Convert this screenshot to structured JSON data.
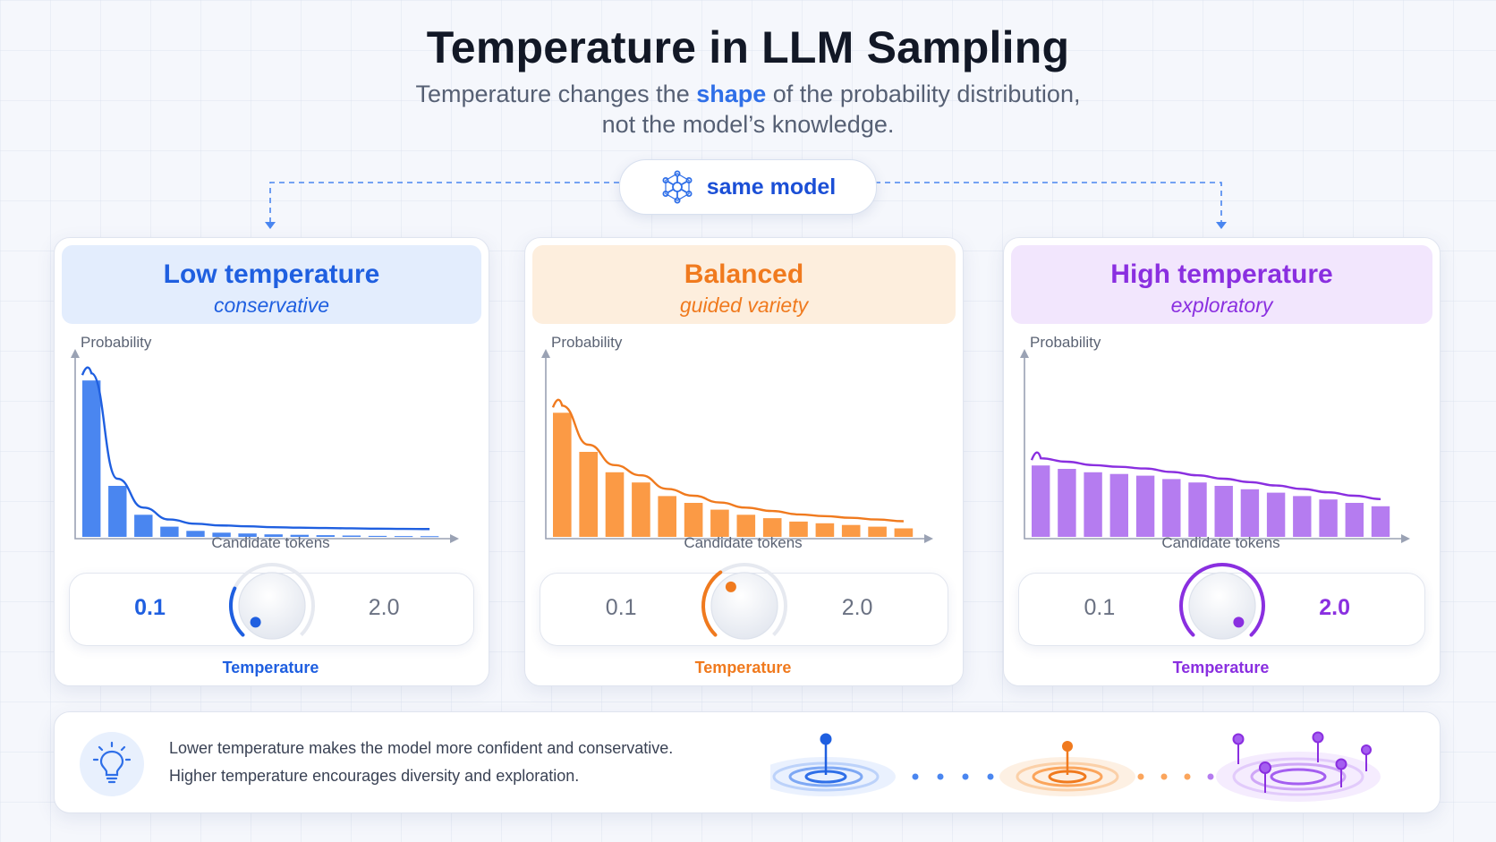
{
  "title": "Temperature in LLM Sampling",
  "subtitle": {
    "before": "Temperature changes the ",
    "highlight": "shape",
    "after": " of the probability distribution,",
    "line2": "not the model’s knowledge."
  },
  "center_pill": {
    "label": "same model",
    "icon": "neural-network-icon"
  },
  "panels": [
    {
      "title": "Low temperature",
      "subtitle": "conservative",
      "accent": "#1f5fe0",
      "bar_color": "#4a86f0",
      "header_bg": "#e3edfd",
      "ylabel": "Probability",
      "xlabel": "Candidate tokens",
      "bars": [
        0.92,
        0.3,
        0.13,
        0.06,
        0.035,
        0.025,
        0.02,
        0.015,
        0.012,
        0.01,
        0.008,
        0.006,
        0.005,
        0.004
      ],
      "dial_min": "0.1",
      "dial_max": "2.0",
      "temperature": 0.1,
      "dial_label": "Temperature"
    },
    {
      "title": "Balanced",
      "subtitle": "guided variety",
      "accent": "#f07a1e",
      "bar_color": "#fb9a45",
      "header_bg": "#fdeedd",
      "ylabel": "Probability",
      "xlabel": "Candidate tokens",
      "bars": [
        0.73,
        0.5,
        0.38,
        0.32,
        0.24,
        0.2,
        0.16,
        0.13,
        0.11,
        0.09,
        0.08,
        0.07,
        0.06,
        0.05
      ],
      "dial_min": "0.1",
      "dial_max": "2.0",
      "temperature": 0.8,
      "dial_label": "Temperature"
    },
    {
      "title": "High temperature",
      "subtitle": "exploratory",
      "accent": "#8a2fe0",
      "bar_color": "#b57cf0",
      "header_bg": "#f2e6fd",
      "ylabel": "Probability",
      "xlabel": "Candidate tokens",
      "bars": [
        0.42,
        0.4,
        0.38,
        0.37,
        0.36,
        0.34,
        0.32,
        0.3,
        0.28,
        0.26,
        0.24,
        0.22,
        0.2,
        0.18
      ],
      "dial_min": "0.1",
      "dial_max": "2.0",
      "temperature": 2.0,
      "dial_label": "Temperature"
    }
  ],
  "bottom": {
    "icon": "lightbulb-icon",
    "line1": "Lower temperature makes the model more confident and conservative.",
    "line2": "Higher temperature encourages diversity and exploration."
  }
}
